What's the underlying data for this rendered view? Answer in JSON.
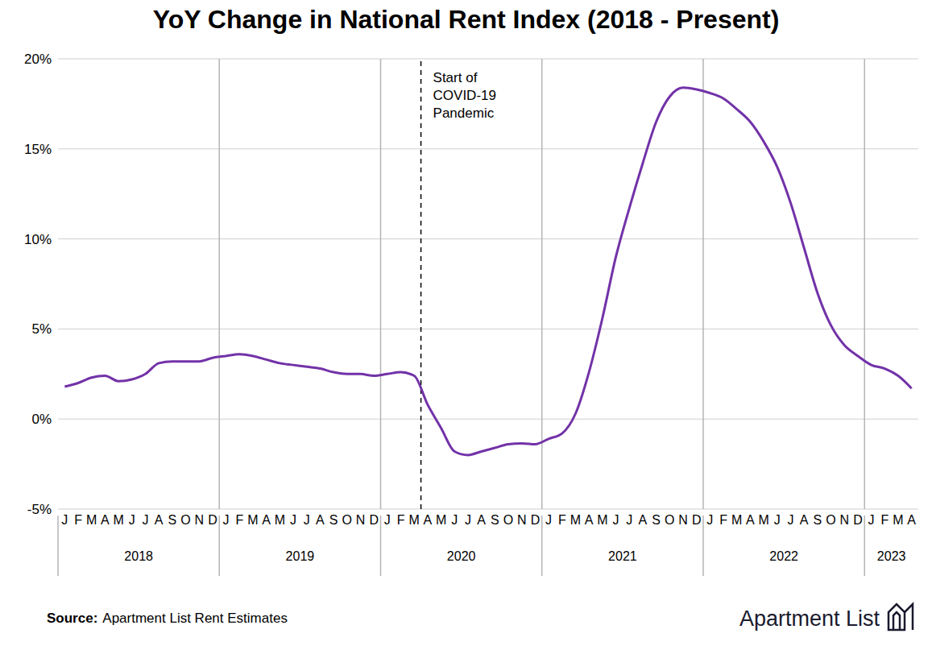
{
  "chart_data": {
    "type": "line",
    "title": "YoY Change in National Rent Index (2018 - Present)",
    "categories": [
      "J",
      "F",
      "M",
      "A",
      "M",
      "J",
      "J",
      "A",
      "S",
      "O",
      "N",
      "D",
      "J",
      "F",
      "M",
      "A",
      "M",
      "J",
      "J",
      "A",
      "S",
      "O",
      "N",
      "D",
      "J",
      "F",
      "M",
      "A",
      "M",
      "J",
      "J",
      "A",
      "S",
      "O",
      "N",
      "D",
      "J",
      "F",
      "M",
      "A",
      "M",
      "J",
      "J",
      "A",
      "S",
      "O",
      "N",
      "D",
      "J",
      "F",
      "M",
      "A",
      "M",
      "J",
      "J",
      "A",
      "S",
      "O",
      "N",
      "D",
      "J",
      "F",
      "M",
      "A"
    ],
    "year_labels": [
      "2018",
      "2019",
      "2020",
      "2021",
      "2022",
      "2023"
    ],
    "values": [
      1.8,
      2.0,
      2.3,
      2.4,
      2.1,
      2.2,
      2.5,
      3.1,
      3.2,
      3.2,
      3.2,
      3.4,
      3.5,
      3.6,
      3.5,
      3.3,
      3.1,
      3.0,
      2.9,
      2.8,
      2.6,
      2.5,
      2.5,
      2.4,
      2.5,
      2.6,
      2.4,
      0.8,
      -0.5,
      -1.8,
      -2.0,
      -1.8,
      -1.6,
      -1.4,
      -1.35,
      -1.4,
      -1.1,
      -0.8,
      0.3,
      2.6,
      5.6,
      9.0,
      11.7,
      14.2,
      16.5,
      17.9,
      18.4,
      18.3,
      18.1,
      17.8,
      17.2,
      16.5,
      15.4,
      14.0,
      12.0,
      9.5,
      7.0,
      5.2,
      4.1,
      3.5,
      3.0,
      2.8,
      2.4,
      1.7
    ],
    "color": "#7232a8",
    "ylim": [
      -5,
      20
    ],
    "yticks": [
      {
        "value": -5,
        "label": "-5%"
      },
      {
        "value": 0,
        "label": "0%"
      },
      {
        "value": 5,
        "label": "5%"
      },
      {
        "value": 10,
        "label": "10%"
      },
      {
        "value": 15,
        "label": "15%"
      },
      {
        "value": 20,
        "label": "20%"
      }
    ],
    "grid": true,
    "annotations": [
      {
        "text": [
          "Start of",
          "COVID-19",
          "Pandemic"
        ],
        "x": 26.5,
        "line_style": "dashed"
      }
    ],
    "source_label": "Source:",
    "source": "Apartment List Rent Estimates",
    "logo": "Apartment List"
  }
}
